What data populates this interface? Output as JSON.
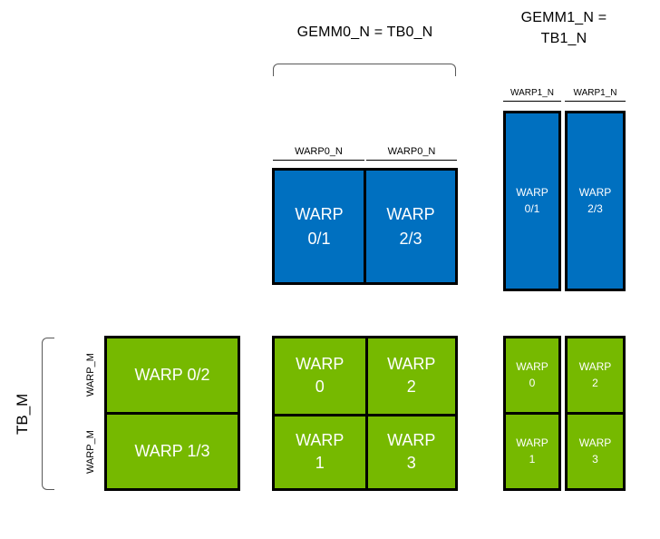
{
  "colors": {
    "blue_fill": "#0070C0",
    "green_fill": "#76B900",
    "cell_text": "#FFFFFF",
    "border": "#000000",
    "bracket": "#595959"
  },
  "headers": {
    "gemm0": "GEMM0_N = TB0_N",
    "gemm1_line1": "GEMM1_N =",
    "gemm1_line2": "TB1_N"
  },
  "axis_labels": {
    "tb_m": "TB_M",
    "warp_m_top": "WARP_M",
    "warp_m_bottom": "WARP_M",
    "warp0_n_left": "WARP0_N",
    "warp0_n_right": "WARP0_N",
    "warp1_n_left": "WARP1_N",
    "warp1_n_right": "WARP1_N"
  },
  "gemm0_accumulator": {
    "cells": [
      {
        "line1": "WARP",
        "line2": "0/1"
      },
      {
        "line1": "WARP",
        "line2": "2/3"
      }
    ]
  },
  "gemm1_accumulator": {
    "cells": [
      {
        "line1": "WARP",
        "line2": "0/1"
      },
      {
        "line1": "WARP",
        "line2": "2/3"
      }
    ]
  },
  "tb_tile_rows": {
    "rows": [
      "WARP 0/2",
      "WARP 1/3"
    ]
  },
  "gemm0_warp_grid": {
    "cells": [
      {
        "line1": "WARP",
        "line2": "0"
      },
      {
        "line1": "WARP",
        "line2": "2"
      },
      {
        "line1": "WARP",
        "line2": "1"
      },
      {
        "line1": "WARP",
        "line2": "3"
      }
    ]
  },
  "gemm1_warp_grid": {
    "left_col": [
      {
        "line1": "WARP",
        "line2": "0"
      },
      {
        "line1": "WARP",
        "line2": "1"
      }
    ],
    "right_col": [
      {
        "line1": "WARP",
        "line2": "2"
      },
      {
        "line1": "WARP",
        "line2": "3"
      }
    ]
  }
}
